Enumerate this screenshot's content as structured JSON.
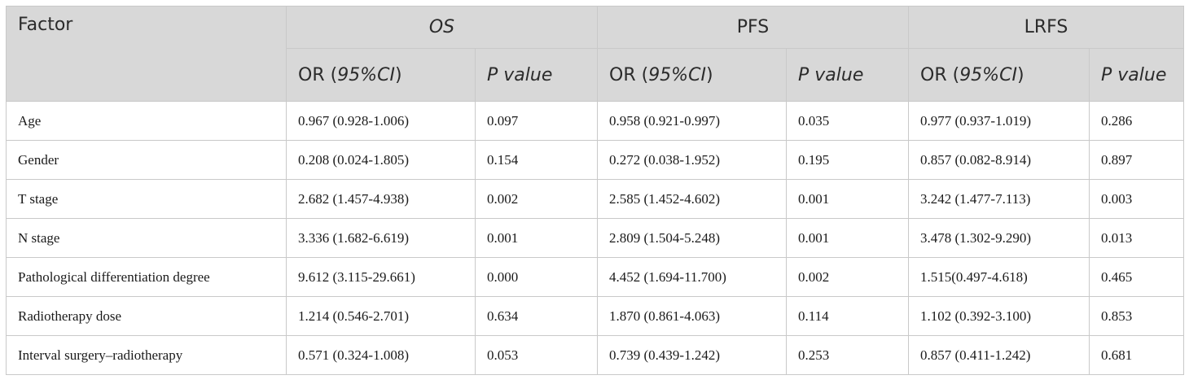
{
  "header": {
    "factor": "Factor",
    "groups": [
      "OS",
      "PFS",
      "LRFS"
    ],
    "or_label": "OR (",
    "ci_label": "95%CI",
    "or_close": ")",
    "p_label": "P value"
  },
  "rows": [
    {
      "factor": "Age",
      "os_or": "0.967 (0.928-1.006)",
      "os_p": "0.097",
      "pfs_or": "0.958 (0.921-0.997)",
      "pfs_p": "0.035",
      "lrfs_or": "0.977 (0.937-1.019)",
      "lrfs_p": "0.286"
    },
    {
      "factor": "Gender",
      "os_or": "0.208 (0.024-1.805)",
      "os_p": "0.154",
      "pfs_or": "0.272 (0.038-1.952)",
      "pfs_p": "0.195",
      "lrfs_or": "0.857 (0.082-8.914)",
      "lrfs_p": "0.897"
    },
    {
      "factor": "T stage",
      "os_or": "2.682 (1.457-4.938)",
      "os_p": "0.002",
      "pfs_or": "2.585 (1.452-4.602)",
      "pfs_p": "0.001",
      "lrfs_or": "3.242 (1.477-7.113)",
      "lrfs_p": "0.003"
    },
    {
      "factor": "N stage",
      "os_or": "3.336 (1.682-6.619)",
      "os_p": "0.001",
      "pfs_or": "2.809 (1.504-5.248)",
      "pfs_p": "0.001",
      "lrfs_or": "3.478 (1.302-9.290)",
      "lrfs_p": "0.013"
    },
    {
      "factor": "Pathological differentiation degree",
      "os_or": "9.612 (3.115-29.661)",
      "os_p": "0.000",
      "pfs_or": "4.452 (1.694-11.700)",
      "pfs_p": "0.002",
      "lrfs_or": "1.515(0.497-4.618)",
      "lrfs_p": "0.465"
    },
    {
      "factor": "Radiotherapy dose",
      "os_or": "1.214 (0.546-2.701)",
      "os_p": "0.634",
      "pfs_or": "1.870 (0.861-4.063)",
      "pfs_p": "0.114",
      "lrfs_or": "1.102 (0.392-3.100)",
      "lrfs_p": "0.853"
    },
    {
      "factor": "Interval surgery–radiotherapy",
      "os_or": "0.571 (0.324-1.008)",
      "os_p": "0.053",
      "pfs_or": "0.739 (0.439-1.242)",
      "pfs_p": "0.253",
      "lrfs_or": "0.857 (0.411-1.242)",
      "lrfs_p": "0.681"
    }
  ]
}
